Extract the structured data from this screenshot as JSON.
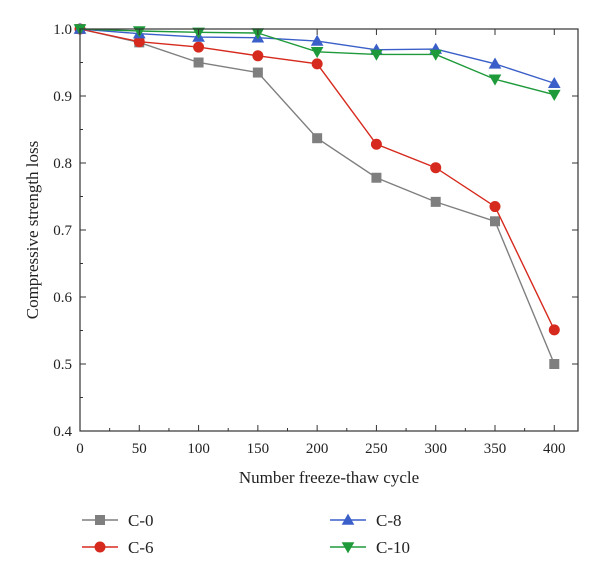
{
  "chart_data": {
    "type": "line",
    "title": "",
    "xlabel": "Number freeze-thaw cycle",
    "ylabel": "Compressive strength loss",
    "xlim": [
      0,
      420
    ],
    "ylim": [
      0.4,
      1.0
    ],
    "xticks": [
      "0",
      "50",
      "100",
      "150",
      "200",
      "250",
      "300",
      "350",
      "400"
    ],
    "yticks": [
      "0.4",
      "0.5",
      "0.6",
      "0.7",
      "0.8",
      "0.9",
      "1.0"
    ],
    "grid": false,
    "legend_position": "bottom",
    "x": [
      0,
      50,
      100,
      150,
      200,
      250,
      300,
      350,
      400
    ],
    "series": [
      {
        "name": "C-0",
        "color": "#7f7f7f",
        "marker": "square",
        "values": [
          1.0,
          0.98,
          0.95,
          0.935,
          0.837,
          0.778,
          0.742,
          0.713,
          0.5
        ]
      },
      {
        "name": "C-6",
        "color": "#d62a1e",
        "marker": "circle",
        "values": [
          1.0,
          0.981,
          0.973,
          0.96,
          0.948,
          0.828,
          0.793,
          0.735,
          0.551
        ]
      },
      {
        "name": "C-8",
        "color": "#3a5fc8",
        "marker": "triangle-up",
        "values": [
          1.0,
          0.993,
          0.988,
          0.987,
          0.982,
          0.969,
          0.97,
          0.948,
          0.919
        ]
      },
      {
        "name": "C-10",
        "color": "#1e9a3a",
        "marker": "triangle-down",
        "values": [
          1.0,
          0.997,
          0.995,
          0.994,
          0.966,
          0.962,
          0.962,
          0.925,
          0.902
        ]
      }
    ]
  }
}
